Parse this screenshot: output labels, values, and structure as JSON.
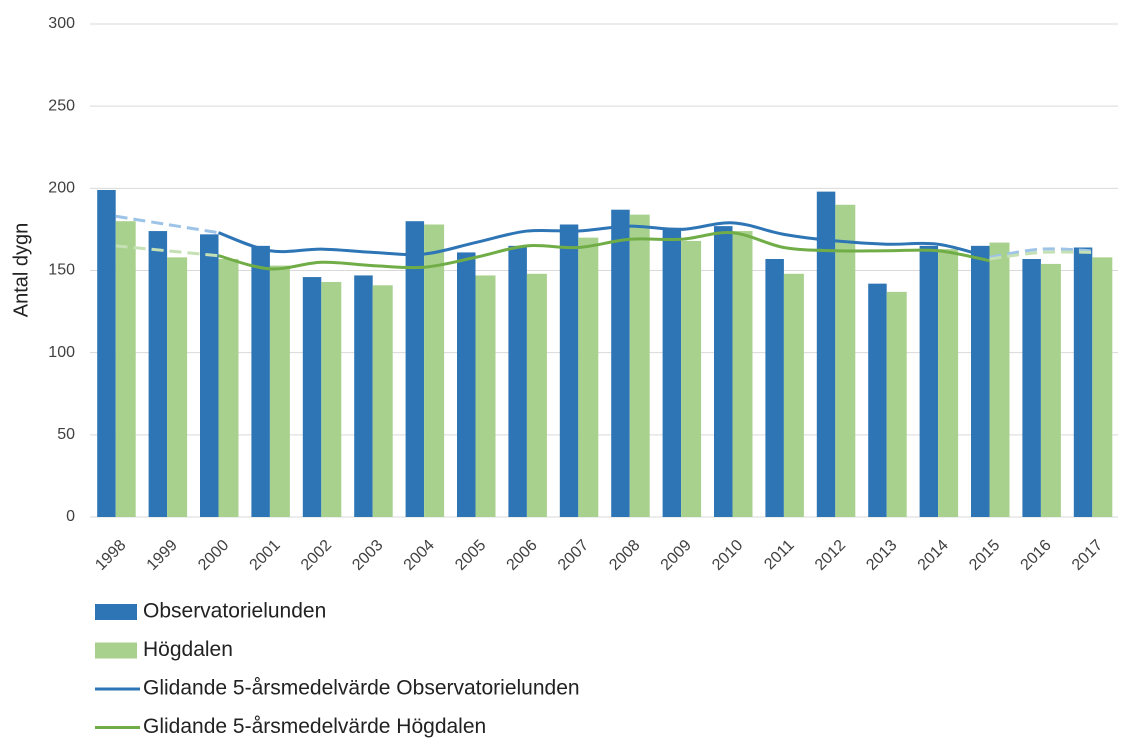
{
  "chart_data": {
    "type": "bar-line",
    "y_label": "Antal dygn",
    "categories": [
      "1998",
      "1999",
      "2000",
      "2001",
      "2002",
      "2003",
      "2004",
      "2005",
      "2006",
      "2007",
      "2008",
      "2009",
      "2010",
      "2011",
      "2012",
      "2013",
      "2014",
      "2015",
      "2016",
      "2017"
    ],
    "ylim": [
      0,
      300
    ],
    "yticks": [
      0,
      50,
      100,
      150,
      200,
      250,
      300
    ],
    "grid": true,
    "legend": "bottom-left",
    "series": [
      {
        "name": "Observatorielunden",
        "kind": "bar",
        "color": "#2e75b6",
        "values": [
          199,
          174,
          172,
          165,
          146,
          147,
          180,
          161,
          165,
          178,
          187,
          176,
          177,
          157,
          198,
          142,
          165,
          165,
          157,
          164
        ]
      },
      {
        "name": "Högdalen",
        "kind": "bar",
        "color": "#a9d18e",
        "values": [
          180,
          158,
          157,
          153,
          143,
          141,
          178,
          147,
          148,
          170,
          184,
          168,
          174,
          148,
          190,
          137,
          163,
          167,
          154,
          158
        ]
      },
      {
        "name": "Glidande 5-årsmedelvärde Observatorielunden",
        "kind": "line",
        "color": "#2e75b6",
        "values": [
          null,
          null,
          173,
          162,
          163,
          161,
          160,
          167,
          174,
          174,
          177,
          175,
          179,
          172,
          168,
          166,
          166,
          158,
          null,
          null
        ]
      },
      {
        "name": "Glidande 5-årsmedelvärde Högdalen",
        "kind": "line",
        "color": "#70ad47",
        "values": [
          null,
          null,
          159,
          151,
          155,
          153,
          152,
          158,
          165,
          164,
          169,
          169,
          173,
          164,
          162,
          162,
          162,
          156,
          null,
          null
        ]
      },
      {
        "kind": "line",
        "line_style": "dashed",
        "color": "#9dc3e6",
        "values": [
          183,
          178,
          173,
          null,
          null,
          null,
          null,
          null,
          null,
          null,
          null,
          null,
          null,
          null,
          null,
          null,
          null,
          158,
          163,
          162
        ]
      },
      {
        "kind": "line",
        "line_style": "dashed",
        "color": "#c5e0b4",
        "values": [
          165,
          162,
          159,
          null,
          null,
          null,
          null,
          null,
          null,
          null,
          null,
          null,
          null,
          null,
          null,
          null,
          null,
          157,
          161,
          161
        ]
      }
    ]
  }
}
